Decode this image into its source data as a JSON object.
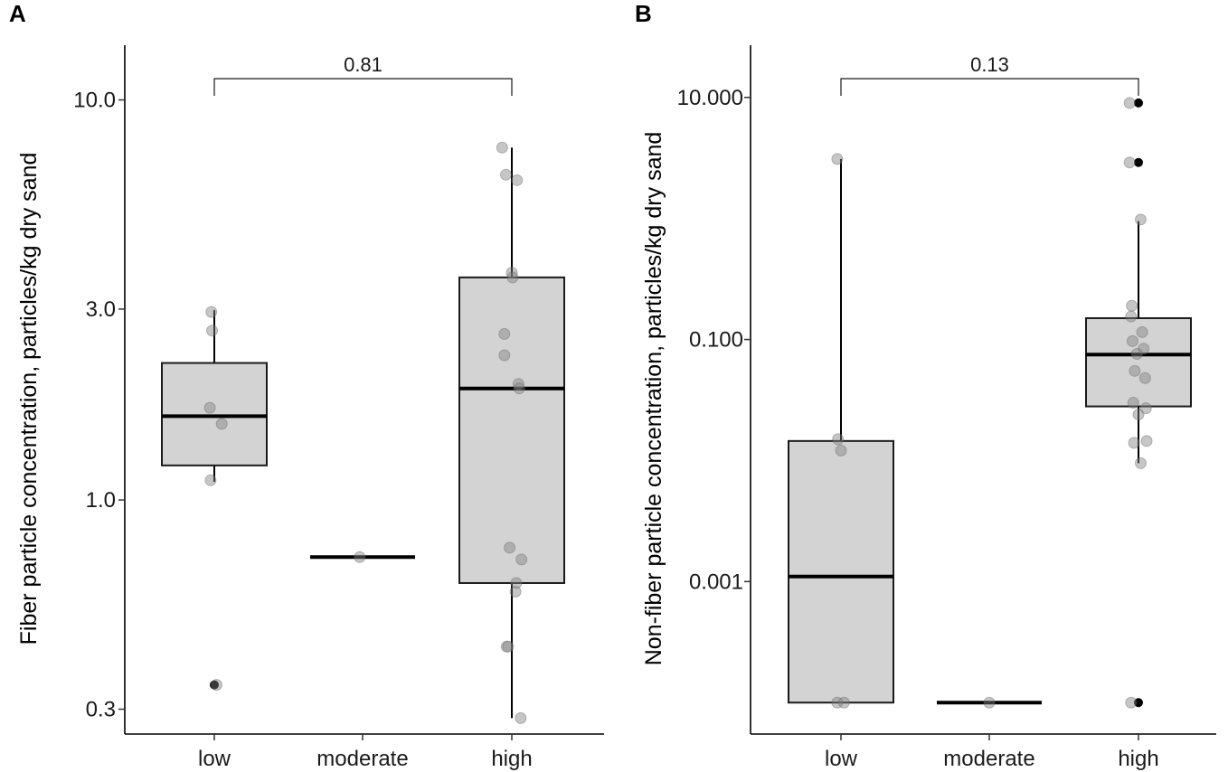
{
  "chart_data": [
    {
      "type": "box",
      "panel_label": "A",
      "ylabel": "Fiber particle concentration, particles/kg dry sand",
      "xlabel": "",
      "y_scale": "log10",
      "ylim": [
        0.26,
        13.7
      ],
      "y_ticks": [
        0.3,
        1.0,
        3.0,
        10.0
      ],
      "y_tick_labels": [
        "0.3",
        "1.0",
        "3.0",
        "10.0"
      ],
      "categories": [
        "low",
        "moderate",
        "high"
      ],
      "boxes": [
        {
          "category": "low",
          "q1": 1.22,
          "median": 1.62,
          "q3": 2.2,
          "whisker_low": 1.11,
          "whisker_high": 2.98
        },
        {
          "category": "moderate",
          "q1": 0.72,
          "median": 0.72,
          "q3": 0.72,
          "whisker_low": 0.72,
          "whisker_high": 0.72
        },
        {
          "category": "high",
          "q1": 0.62,
          "median": 1.9,
          "q3": 3.6,
          "whisker_low": 0.285,
          "whisker_high": 7.6
        }
      ],
      "outliers": [
        {
          "category": "low",
          "value": 0.345
        }
      ],
      "points": [
        {
          "category": "low",
          "jitter": -0.04,
          "value": 2.95
        },
        {
          "category": "low",
          "jitter": -0.03,
          "value": 2.65
        },
        {
          "category": "low",
          "jitter": -0.06,
          "value": 1.7
        },
        {
          "category": "low",
          "jitter": 0.1,
          "value": 1.55
        },
        {
          "category": "low",
          "jitter": -0.05,
          "value": 1.12
        },
        {
          "category": "low",
          "jitter": 0.03,
          "value": 0.345
        },
        {
          "category": "moderate",
          "jitter": -0.04,
          "value": 0.72
        },
        {
          "category": "high",
          "jitter": -0.13,
          "value": 7.6
        },
        {
          "category": "high",
          "jitter": -0.08,
          "value": 6.5
        },
        {
          "category": "high",
          "jitter": 0.07,
          "value": 6.3
        },
        {
          "category": "high",
          "jitter": 0.0,
          "value": 3.7
        },
        {
          "category": "high",
          "jitter": 0.01,
          "value": 3.6
        },
        {
          "category": "high",
          "jitter": -0.1,
          "value": 2.6
        },
        {
          "category": "high",
          "jitter": -0.1,
          "value": 2.3
        },
        {
          "category": "high",
          "jitter": 0.09,
          "value": 1.95
        },
        {
          "category": "high",
          "jitter": 0.1,
          "value": 1.9
        },
        {
          "category": "high",
          "jitter": -0.03,
          "value": 0.76
        },
        {
          "category": "high",
          "jitter": 0.13,
          "value": 0.71
        },
        {
          "category": "high",
          "jitter": 0.06,
          "value": 0.62
        },
        {
          "category": "high",
          "jitter": 0.05,
          "value": 0.59
        },
        {
          "category": "high",
          "jitter": -0.07,
          "value": 0.43
        },
        {
          "category": "high",
          "jitter": -0.05,
          "value": 0.43
        },
        {
          "category": "high",
          "jitter": 0.12,
          "value": 0.285
        }
      ],
      "comparison": {
        "from": "low",
        "to": "high",
        "label": "0.81"
      }
    },
    {
      "type": "box",
      "panel_label": "B",
      "ylabel": "Non-fiber particle concentration, particles/kg dry sand",
      "xlabel": "",
      "y_scale": "log10",
      "ylim": [
        5.5e-05,
        27
      ],
      "y_ticks": [
        0.001,
        0.1,
        10.0
      ],
      "y_tick_labels": [
        "0.001",
        "0.100",
        "10.000"
      ],
      "categories": [
        "low",
        "moderate",
        "high"
      ],
      "boxes": [
        {
          "category": "low",
          "q1": 0.0001,
          "median": 0.0011,
          "q3": 0.0145,
          "whisker_low": 0.0001,
          "whisker_high": 3.1
        },
        {
          "category": "moderate",
          "q1": 0.0001,
          "median": 0.0001,
          "q3": 0.0001,
          "whisker_low": 0.0001,
          "whisker_high": 0.0001
        },
        {
          "category": "high",
          "q1": 0.028,
          "median": 0.075,
          "q3": 0.15,
          "whisker_low": 0.0095,
          "whisker_high": 0.95
        }
      ],
      "outliers": [
        {
          "category": "high",
          "value": 9.0
        },
        {
          "category": "high",
          "value": 2.9
        },
        {
          "category": "high",
          "value": 0.0001
        }
      ],
      "points": [
        {
          "category": "low",
          "jitter": -0.05,
          "value": 3.1
        },
        {
          "category": "low",
          "jitter": -0.04,
          "value": 0.015
        },
        {
          "category": "low",
          "jitter": 0.0,
          "value": 0.0121
        },
        {
          "category": "low",
          "jitter": -0.05,
          "value": 0.0001
        },
        {
          "category": "low",
          "jitter": 0.04,
          "value": 0.0001
        },
        {
          "category": "moderate",
          "jitter": 0.0,
          "value": 0.0001
        },
        {
          "category": "high",
          "jitter": -0.12,
          "value": 9.0
        },
        {
          "category": "high",
          "jitter": -0.12,
          "value": 2.9
        },
        {
          "category": "high",
          "jitter": 0.03,
          "value": 0.98
        },
        {
          "category": "high",
          "jitter": -0.09,
          "value": 0.19
        },
        {
          "category": "high",
          "jitter": -0.1,
          "value": 0.155
        },
        {
          "category": "high",
          "jitter": 0.05,
          "value": 0.115
        },
        {
          "category": "high",
          "jitter": -0.08,
          "value": 0.097
        },
        {
          "category": "high",
          "jitter": 0.07,
          "value": 0.084
        },
        {
          "category": "high",
          "jitter": -0.02,
          "value": 0.076
        },
        {
          "category": "high",
          "jitter": -0.05,
          "value": 0.055
        },
        {
          "category": "high",
          "jitter": 0.09,
          "value": 0.048
        },
        {
          "category": "high",
          "jitter": -0.07,
          "value": 0.03
        },
        {
          "category": "high",
          "jitter": 0.0,
          "value": 0.024
        },
        {
          "category": "high",
          "jitter": 0.1,
          "value": 0.027
        },
        {
          "category": "high",
          "jitter": -0.06,
          "value": 0.014
        },
        {
          "category": "high",
          "jitter": 0.11,
          "value": 0.0145
        },
        {
          "category": "high",
          "jitter": 0.03,
          "value": 0.0095
        },
        {
          "category": "high",
          "jitter": -0.1,
          "value": 0.0001
        }
      ],
      "comparison": {
        "from": "low",
        "to": "high",
        "label": "0.13"
      }
    }
  ]
}
